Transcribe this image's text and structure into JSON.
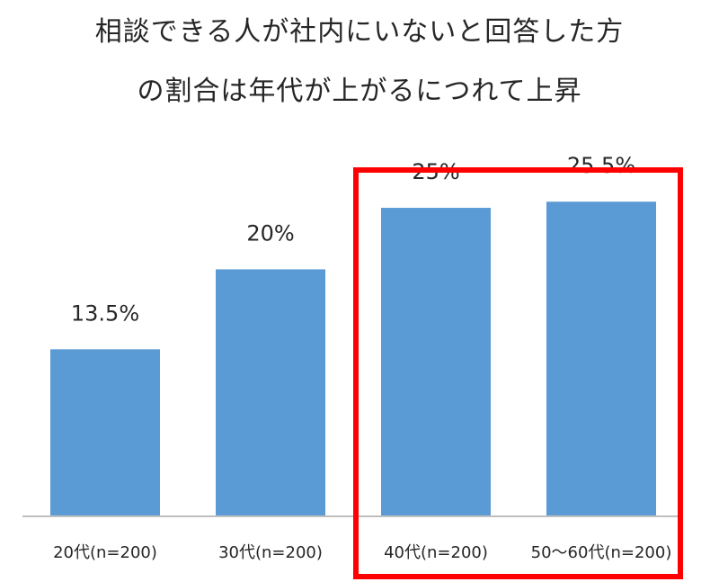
{
  "title_lines": [
    "相談できる人が社内にいないと回答した方",
    "の割合は年代が上がるにつれて上昇"
  ],
  "colors": {
    "bar": "#5B9BD5",
    "highlight_box": "#FF0000",
    "axis": "#BFBFBF",
    "text": "#262626"
  },
  "chart_data": {
    "type": "bar",
    "categories": [
      "20代(n=200)",
      "30代(n=200)",
      "40代(n=200)",
      "50〜60代(n=200)"
    ],
    "values": [
      13.5,
      20,
      25,
      25.5
    ],
    "data_labels": [
      "13.5%",
      "20%",
      "25%",
      "25.5%"
    ],
    "title": "相談できる人が社内にいないと回答した方の割合は年代が上がるにつれて上昇",
    "ylim": [
      0,
      28
    ],
    "grid": false,
    "legend": "none",
    "highlight_categories": [
      "40代(n=200)",
      "50〜60代(n=200)"
    ]
  }
}
